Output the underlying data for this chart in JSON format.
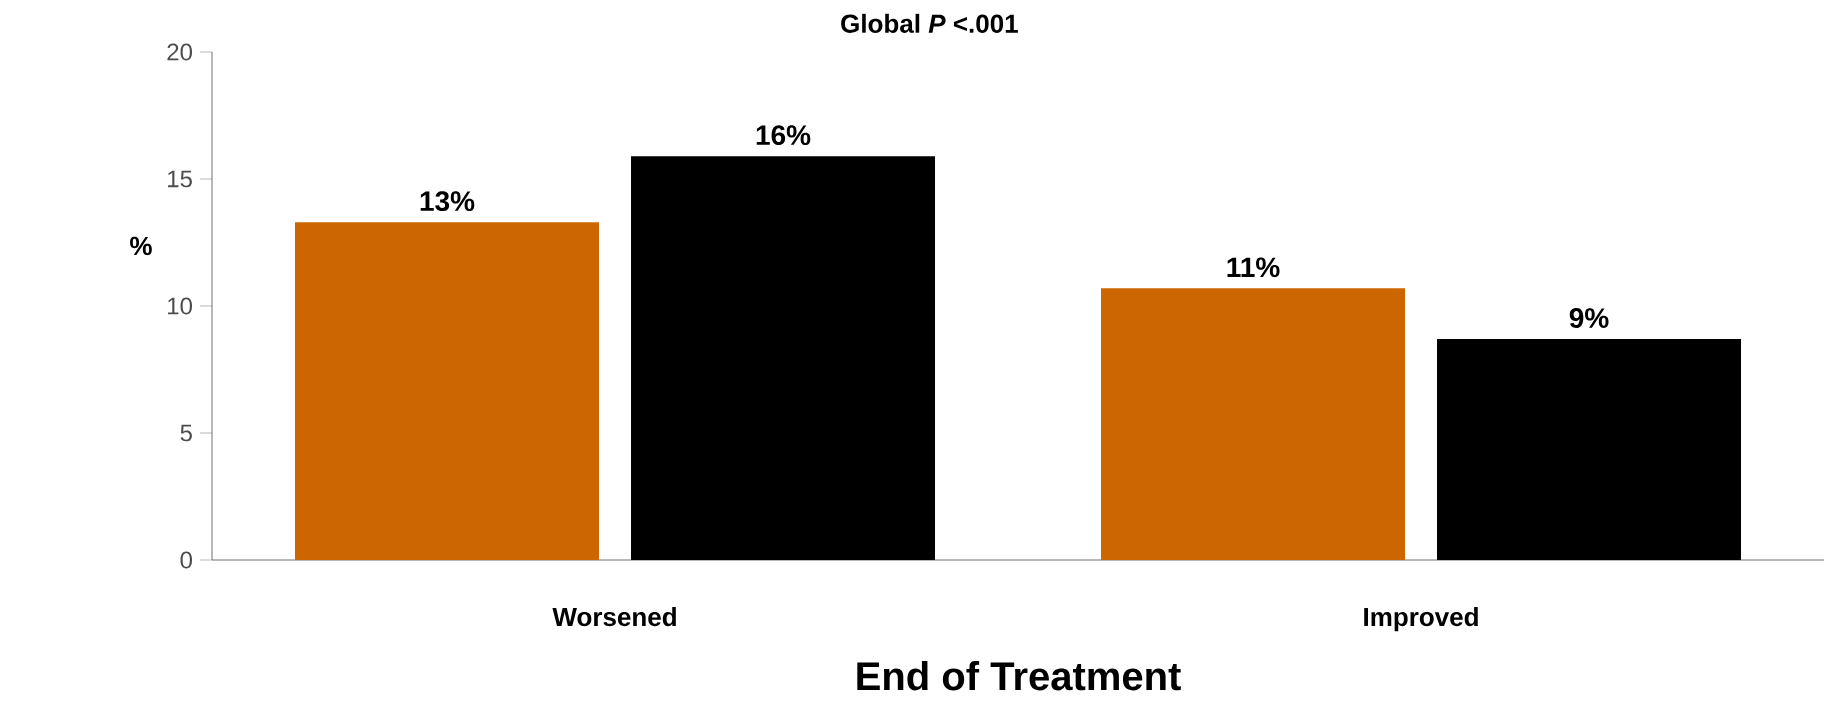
{
  "chart_data": {
    "type": "bar",
    "title": "Global *P* <.001",
    "xlabel": "End of Treatment",
    "ylabel": "%",
    "categories": [
      "Worsened",
      "Improved"
    ],
    "series": [
      {
        "color": "#cc6600",
        "values": [
          13.3,
          10.7
        ],
        "value_labels": [
          "13%",
          "11%"
        ]
      },
      {
        "color": "#000000",
        "values": [
          15.9,
          8.7
        ],
        "value_labels": [
          "16%",
          "9%"
        ]
      }
    ],
    "ylim": [
      0,
      20
    ],
    "yticks": [
      0,
      5,
      10,
      15,
      20
    ],
    "grid": false
  }
}
